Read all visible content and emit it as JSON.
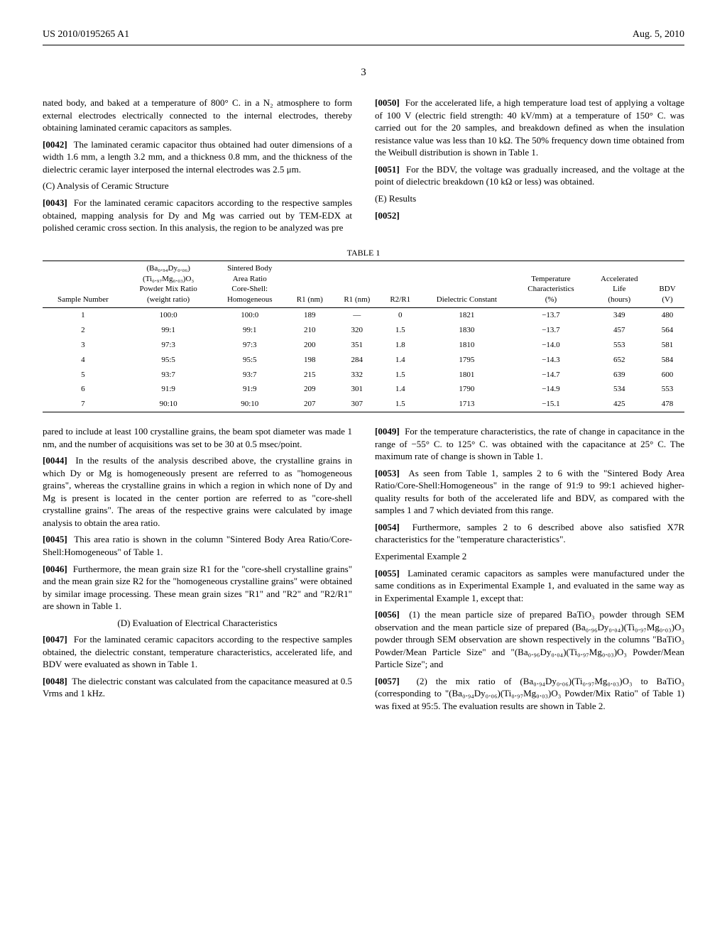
{
  "header": {
    "pub_number": "US 2010/0195265 A1",
    "pub_date": "Aug. 5, 2010",
    "page_number": "3"
  },
  "body": {
    "para_0041_tail": "nated body, and baked at a temperature of 800° C. in a N₂ atmosphere to form external electrodes electrically connected to the internal electrodes, thereby obtaining laminated ceramic capacitors as samples.",
    "p0042": "The laminated ceramic capacitor thus obtained had outer dimensions of a width 1.6 mm, a length 3.2 mm, and a thickness 0.8 mm, and the thickness of the dielectric ceramic layer interposed the internal electrodes was 2.5 μm.",
    "head_C": "(C) Analysis of Ceramic Structure",
    "p0043": "For the laminated ceramic capacitors according to the respective samples obtained, mapping analysis for Dy and Mg was carried out by TEM-EDX at polished ceramic cross section. In this analysis, the region to be analyzed was pre",
    "p0050": "For the accelerated life, a high temperature load test of applying a voltage of 100 V (electric field strength: 40 kV/mm) at a temperature of 150° C. was carried out for the 20 samples, and breakdown defined as when the insulation resistance value was less than 10 kΩ. The 50% frequency down time obtained from the Weibull distribution is shown in Table 1.",
    "p0051": "For the BDV, the voltage was gradually increased, and the voltage at the point of dielectric breakdown (10 kΩ or less) was obtained.",
    "head_E": "(E) Results",
    "p0052_num": "[0052]",
    "p0043_cont": "pared to include at least 100 crystalline grains, the beam spot diameter was made 1 nm, and the number of acquisitions was set to be 30 at 0.5 msec/point.",
    "p0044": "In the results of the analysis described above, the crystalline grains in which Dy or Mg is homogeneously present are referred to as \"homogeneous grains\", whereas the crystalline grains in which a region in which none of Dy and Mg is present is located in the center portion are referred to as \"core-shell crystalline grains\". The areas of the respective grains were calculated by image analysis to obtain the area ratio.",
    "p0045": "This area ratio is shown in the column \"Sintered Body Area Ratio/Core-Shell:Homogeneous\" of Table 1.",
    "p0046": "Furthermore, the mean grain size R1 for the \"core-shell crystalline grains\" and the mean grain size R2 for the \"homogeneous crystalline grains\" were obtained by similar image processing. These mean grain sizes \"R1\" and \"R2\" and \"R2/R1\" are shown in Table 1.",
    "head_D": "(D) Evaluation of Electrical Characteristics",
    "p0047": "For the laminated ceramic capacitors according to the respective samples obtained, the dielectric constant, temperature characteristics, accelerated life, and BDV were evaluated as shown in Table 1.",
    "p0048": "The dielectric constant was calculated from the capacitance measured at 0.5 Vrms and 1 kHz.",
    "p0049": "For the temperature characteristics, the rate of change in capacitance in the range of −55° C. to 125° C. was obtained with the capacitance at 25° C. The maximum rate of change is shown in Table 1.",
    "p0053": "As seen from Table 1, samples 2 to 6 with the \"Sintered Body Area Ratio/Core-Shell:Homogeneous\" in the range of 91:9 to 99:1 achieved higher-quality results for both of the accelerated life and BDV, as compared with the samples 1 and 7 which deviated from this range.",
    "p0054": "Furthermore, samples 2 to 6 described above also satisfied X7R characteristics for the \"temperature characteristics\".",
    "head_ex2": "Experimental Example 2",
    "p0055": "Laminated ceramic capacitors as samples were manufactured under the same conditions as in Experimental Example 1, and evaluated in the same way as in Experimental Example 1, except that:",
    "p0056": "(1) the mean particle size of prepared BaTiO₃ powder through SEM observation and the mean particle size of prepared (Ba₀.₉₆Dy₀.₀₄)(Ti₀.₉₇Mg₀.₀₃)O₃ powder through SEM observation are shown respectively in the columns \"BaTiO₃ Powder/Mean Particle Size\" and \"(Ba₀.₉₆Dy₀.₀₄)(Ti₀.₉₇Mg₀.₀₃)O₃ Powder/Mean Particle Size\"; and",
    "p0057": "(2) the mix ratio of (Ba₀.₉₄Dy₀.₀₆)(Ti₀.₉₇Mg₀.₀₃)O₃ to BaTiO₃ (corresponding to \"(Ba₀.₉₄Dy₀.₀₆)(Ti₀.₉₇Mg₀.₀₃)O₃ Powder/Mix Ratio\" of Table 1) was fixed at 95:5. The evaluation results are shown in Table 2."
  },
  "table1": {
    "title": "TABLE 1",
    "columns": {
      "c1": "Sample Number",
      "c2a": "(Ba₀.₉₄Dy₀.₀₆)",
      "c2b": "(Ti₀.₉₇Mg₀.₀₃)O₃",
      "c2c": "Powder Mix Ratio",
      "c2d": "(weight ratio)",
      "c3a": "Sintered Body",
      "c3b": "Area Ratio",
      "c3c": "Core-Shell:",
      "c3d": "Homogeneous",
      "c4": "R1 (nm)",
      "c5": "R1 (nm)",
      "c6": "R2/R1",
      "c7": "Dielectric Constant",
      "c8a": "Temperature",
      "c8b": "Characteristics",
      "c8c": "(%)",
      "c9a": "Accelerated",
      "c9b": "Life",
      "c9c": "(hours)",
      "c10a": "BDV",
      "c10b": "(V)"
    },
    "rows": [
      [
        "1",
        "100:0",
        "100:0",
        "189",
        "—",
        "0",
        "1821",
        "−13.7",
        "349",
        "480"
      ],
      [
        "2",
        "99:1",
        "99:1",
        "210",
        "320",
        "1.5",
        "1830",
        "−13.7",
        "457",
        "564"
      ],
      [
        "3",
        "97:3",
        "97:3",
        "200",
        "351",
        "1.8",
        "1810",
        "−14.0",
        "553",
        "581"
      ],
      [
        "4",
        "95:5",
        "95:5",
        "198",
        "284",
        "1.4",
        "1795",
        "−14.3",
        "652",
        "584"
      ],
      [
        "5",
        "93:7",
        "93:7",
        "215",
        "332",
        "1.5",
        "1801",
        "−14.7",
        "639",
        "600"
      ],
      [
        "6",
        "91:9",
        "91:9",
        "209",
        "301",
        "1.4",
        "1790",
        "−14.9",
        "534",
        "553"
      ],
      [
        "7",
        "90:10",
        "90:10",
        "207",
        "307",
        "1.5",
        "1713",
        "−15.1",
        "425",
        "478"
      ]
    ]
  }
}
